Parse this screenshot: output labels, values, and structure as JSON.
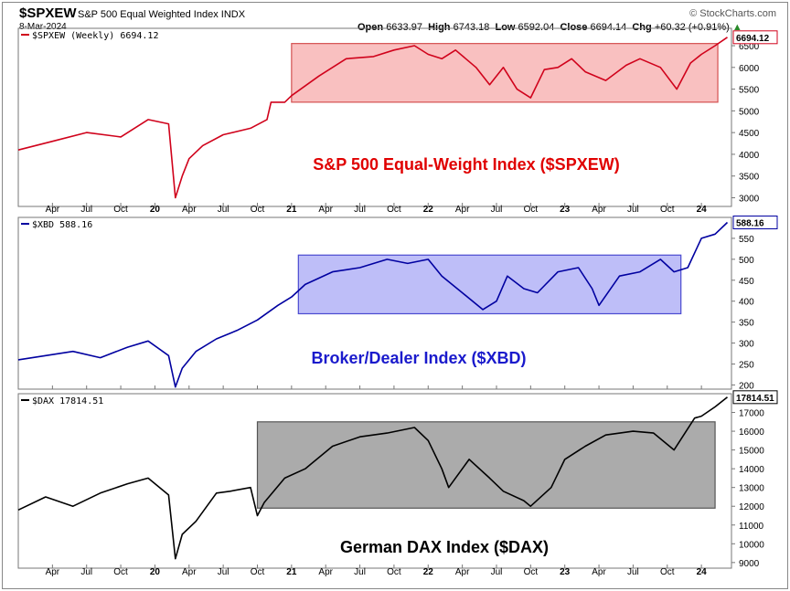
{
  "header": {
    "symbol": "$SPXEW",
    "description": "S&P 500 Equal Weighted Index  INDX",
    "date": "8-Mar-2024",
    "open_label": "Open",
    "open": "6633.97",
    "high_label": "High",
    "high": "6743.18",
    "low_label": "Low",
    "low": "6592.04",
    "close_label": "Close",
    "close": "6694.14",
    "chg_label": "Chg",
    "chg": "+60.32 (+0.91%)",
    "brand": "© StockCharts.com"
  },
  "x_axis": {
    "ticks": [
      {
        "label": "Apr",
        "t": 2019.25
      },
      {
        "label": "Jul",
        "t": 2019.5
      },
      {
        "label": "Oct",
        "t": 2019.75
      },
      {
        "label": "20",
        "t": 2020.0,
        "bold": true
      },
      {
        "label": "Apr",
        "t": 2020.25
      },
      {
        "label": "Jul",
        "t": 2020.5
      },
      {
        "label": "Oct",
        "t": 2020.75
      },
      {
        "label": "21",
        "t": 2021.0,
        "bold": true
      },
      {
        "label": "Apr",
        "t": 2021.25
      },
      {
        "label": "Jul",
        "t": 2021.5
      },
      {
        "label": "Oct",
        "t": 2021.75
      },
      {
        "label": "22",
        "t": 2022.0,
        "bold": true
      },
      {
        "label": "Apr",
        "t": 2022.25
      },
      {
        "label": "Jul",
        "t": 2022.5
      },
      {
        "label": "Oct",
        "t": 2022.75
      },
      {
        "label": "23",
        "t": 2023.0,
        "bold": true
      },
      {
        "label": "Apr",
        "t": 2023.25
      },
      {
        "label": "Jul",
        "t": 2023.5
      },
      {
        "label": "Oct",
        "t": 2023.75
      },
      {
        "label": "24",
        "t": 2024.0,
        "bold": true
      }
    ]
  },
  "chart_data": [
    {
      "type": "line",
      "legend": "$SPXEW (Weekly) 6694.12",
      "title": "S&P 500 Equal-Weight Index ($SPXEW)",
      "color": "#d0021b",
      "title_color": "#e00000",
      "last_value": "6694.12",
      "yticks": [
        3000,
        3500,
        4000,
        4500,
        5000,
        5500,
        6000,
        6500
      ],
      "ylim": [
        2800,
        6900
      ],
      "range_box": {
        "x": [
          2021.0,
          2024.12
        ],
        "y": [
          5200,
          6550
        ],
        "fill": "rgba(240,90,90,0.38)",
        "stroke": "#d45050"
      },
      "x": [
        2019.0,
        2019.25,
        2019.5,
        2019.75,
        2019.95,
        2020.1,
        2020.15,
        2020.2,
        2020.25,
        2020.35,
        2020.5,
        2020.7,
        2020.82,
        2020.85,
        2020.95,
        2021.0,
        2021.2,
        2021.4,
        2021.6,
        2021.75,
        2021.9,
        2022.0,
        2022.1,
        2022.2,
        2022.35,
        2022.45,
        2022.55,
        2022.65,
        2022.75,
        2022.85,
        2022.95,
        2023.05,
        2023.15,
        2023.3,
        2023.45,
        2023.55,
        2023.7,
        2023.82,
        2023.92,
        2024.0,
        2024.1,
        2024.19
      ],
      "y": [
        4100,
        4300,
        4500,
        4400,
        4800,
        4700,
        3000,
        3500,
        3900,
        4200,
        4450,
        4600,
        4800,
        5200,
        5200,
        5350,
        5800,
        6200,
        6250,
        6400,
        6500,
        6300,
        6200,
        6400,
        6000,
        5600,
        6000,
        5500,
        5300,
        5950,
        6000,
        6200,
        5900,
        5700,
        6050,
        6200,
        6000,
        5500,
        6100,
        6300,
        6500,
        6694
      ]
    },
    {
      "type": "line",
      "legend": "$XBD 588.16",
      "title": "Broker/Dealer Index ($XBD)",
      "color": "#0000a0",
      "title_color": "#1a1acc",
      "last_value": "588.16",
      "yticks": [
        200,
        250,
        300,
        350,
        400,
        450,
        500,
        550
      ],
      "ylim": [
        190,
        600
      ],
      "range_box": {
        "x": [
          2021.05,
          2023.85
        ],
        "y": [
          370,
          510
        ],
        "fill": "rgba(110,110,240,0.45)",
        "stroke": "#4a4ad0"
      },
      "x": [
        2019.0,
        2019.2,
        2019.4,
        2019.6,
        2019.8,
        2019.95,
        2020.1,
        2020.15,
        2020.2,
        2020.3,
        2020.45,
        2020.6,
        2020.75,
        2020.9,
        2021.0,
        2021.1,
        2021.3,
        2021.5,
        2021.7,
        2021.85,
        2022.0,
        2022.1,
        2022.25,
        2022.4,
        2022.5,
        2022.58,
        2022.7,
        2022.8,
        2022.95,
        2023.1,
        2023.2,
        2023.25,
        2023.4,
        2023.55,
        2023.7,
        2023.8,
        2023.9,
        2024.0,
        2024.1,
        2024.19
      ],
      "y": [
        260,
        270,
        280,
        265,
        290,
        305,
        270,
        195,
        240,
        280,
        310,
        330,
        355,
        390,
        410,
        440,
        470,
        480,
        500,
        490,
        500,
        460,
        420,
        380,
        400,
        460,
        430,
        420,
        470,
        480,
        430,
        390,
        460,
        470,
        500,
        470,
        480,
        550,
        560,
        588
      ]
    },
    {
      "type": "line",
      "legend": "$DAX 17814.51",
      "title": "German DAX Index ($DAX)",
      "color": "#000000",
      "title_color": "#000000",
      "last_value": "17814.51",
      "yticks": [
        9000,
        10000,
        11000,
        12000,
        13000,
        14000,
        15000,
        16000,
        17000
      ],
      "ylim": [
        8700,
        18000
      ],
      "range_box": {
        "x": [
          2020.75,
          2024.1
        ],
        "y": [
          11900,
          16500
        ],
        "fill": "rgba(120,120,120,0.62)",
        "stroke": "#555555"
      },
      "x": [
        2019.0,
        2019.2,
        2019.4,
        2019.6,
        2019.8,
        2019.95,
        2020.1,
        2020.15,
        2020.2,
        2020.3,
        2020.45,
        2020.55,
        2020.7,
        2020.75,
        2020.8,
        2020.95,
        2021.1,
        2021.3,
        2021.5,
        2021.7,
        2021.9,
        2022.0,
        2022.1,
        2022.15,
        2022.3,
        2022.45,
        2022.55,
        2022.7,
        2022.75,
        2022.9,
        2023.0,
        2023.15,
        2023.3,
        2023.5,
        2023.65,
        2023.8,
        2023.95,
        2024.0,
        2024.1,
        2024.19
      ],
      "y": [
        11800,
        12500,
        12000,
        12700,
        13200,
        13500,
        12600,
        9200,
        10500,
        11200,
        12700,
        12800,
        13000,
        11500,
        12200,
        13500,
        14000,
        15200,
        15700,
        15900,
        16200,
        15500,
        14000,
        13000,
        14500,
        13500,
        12800,
        12300,
        12000,
        13000,
        14500,
        15200,
        15800,
        16000,
        15900,
        15000,
        16700,
        16800,
        17300,
        17814
      ]
    }
  ]
}
